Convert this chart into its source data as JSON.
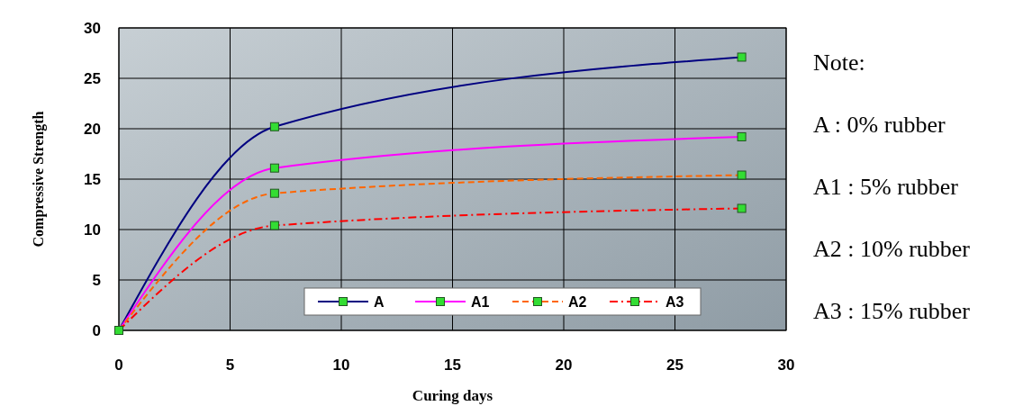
{
  "chart_data": {
    "type": "line",
    "xlabel": "Curing days",
    "ylabel": "Compressive Strength",
    "x": [
      0,
      7,
      28
    ],
    "series": [
      {
        "name": "A",
        "color": "#000080",
        "values": [
          0,
          20.2,
          27.1
        ],
        "line_style": "solid"
      },
      {
        "name": "A1",
        "color": "#ff00ff",
        "values": [
          0,
          16.1,
          19.2
        ],
        "line_style": "solid"
      },
      {
        "name": "A2",
        "color": "#ff6600",
        "values": [
          0,
          13.6,
          15.4
        ],
        "line_style": "dashed"
      },
      {
        "name": "A3",
        "color": "#ff0000",
        "values": [
          0,
          10.4,
          12.1
        ],
        "line_style": "dashdot"
      }
    ],
    "xlim": [
      0,
      30
    ],
    "xticks": [
      0,
      5,
      10,
      15,
      20,
      25,
      30
    ],
    "ylim": [
      0,
      30
    ],
    "yticks": [
      0,
      5,
      10,
      15,
      20,
      25,
      30
    ],
    "grid": true,
    "legend": "bottom",
    "marker": "square",
    "annotations": [
      "Note:",
      "A : 0% rubber",
      "A1 : 5% rubber",
      "A2 : 10% rubber",
      "A3 : 15% rubber"
    ]
  }
}
